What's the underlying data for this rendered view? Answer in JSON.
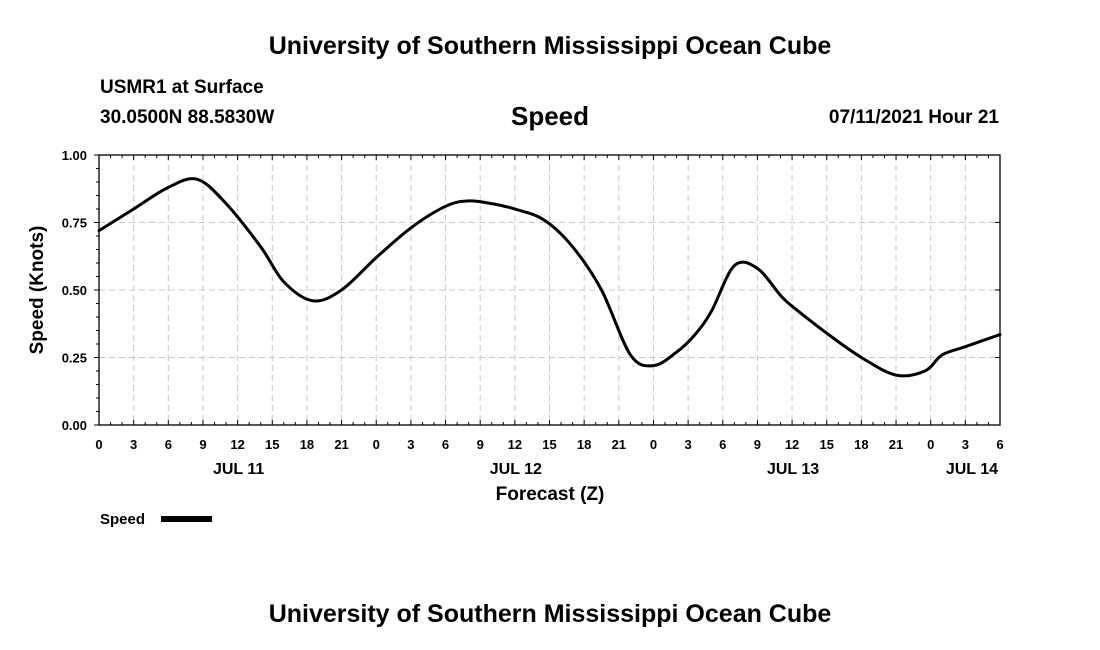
{
  "header": {
    "title_top": "University of Southern Mississippi Ocean Cube",
    "station": "USMR1 at Surface",
    "coords": "30.0500N  88.5830W",
    "variable": "Speed",
    "datetime": "07/11/2021 Hour 21",
    "title_bottom": "University of Southern Mississippi Ocean Cube"
  },
  "legend": {
    "label": "Speed"
  },
  "chart_data": {
    "type": "line",
    "xlabel": "Forecast (Z)",
    "ylabel": "Speed (Knots)",
    "ylim": [
      0,
      1
    ],
    "y_ticks": [
      "0.00",
      "0.25",
      "0.50",
      "0.75",
      "1.00"
    ],
    "x_range_hours": [
      0,
      78
    ],
    "x_ticks": [
      "0",
      "3",
      "6",
      "9",
      "12",
      "15",
      "18",
      "21",
      "0",
      "3",
      "6",
      "9",
      "12",
      "15",
      "18",
      "21",
      "0",
      "3",
      "6",
      "9",
      "12",
      "15",
      "18",
      "21",
      "0",
      "3",
      "6"
    ],
    "day_labels": [
      {
        "label": "JUL 11",
        "hour": 12
      },
      {
        "label": "JUL 12",
        "hour": 36
      },
      {
        "label": "JUL 13",
        "hour": 60
      },
      {
        "label": "JUL 14",
        "hour": 78
      }
    ],
    "grid": true,
    "series": [
      {
        "name": "Speed",
        "color": "#000000",
        "x": [
          0,
          3,
          6,
          8.5,
          11,
          14,
          16,
          18.5,
          21,
          24,
          27,
          30,
          32,
          34,
          36,
          38.5,
          41,
          43.5,
          46,
          48,
          50,
          51.5,
          53,
          55,
          57,
          59,
          60,
          63,
          66,
          69,
          71.5,
          73,
          75,
          78
        ],
        "values": [
          0.72,
          0.8,
          0.88,
          0.91,
          0.82,
          0.66,
          0.53,
          0.46,
          0.5,
          0.62,
          0.73,
          0.81,
          0.83,
          0.82,
          0.8,
          0.76,
          0.66,
          0.5,
          0.26,
          0.22,
          0.27,
          0.33,
          0.42,
          0.59,
          0.58,
          0.48,
          0.44,
          0.34,
          0.25,
          0.185,
          0.2,
          0.26,
          0.29,
          0.335
        ]
      }
    ]
  }
}
